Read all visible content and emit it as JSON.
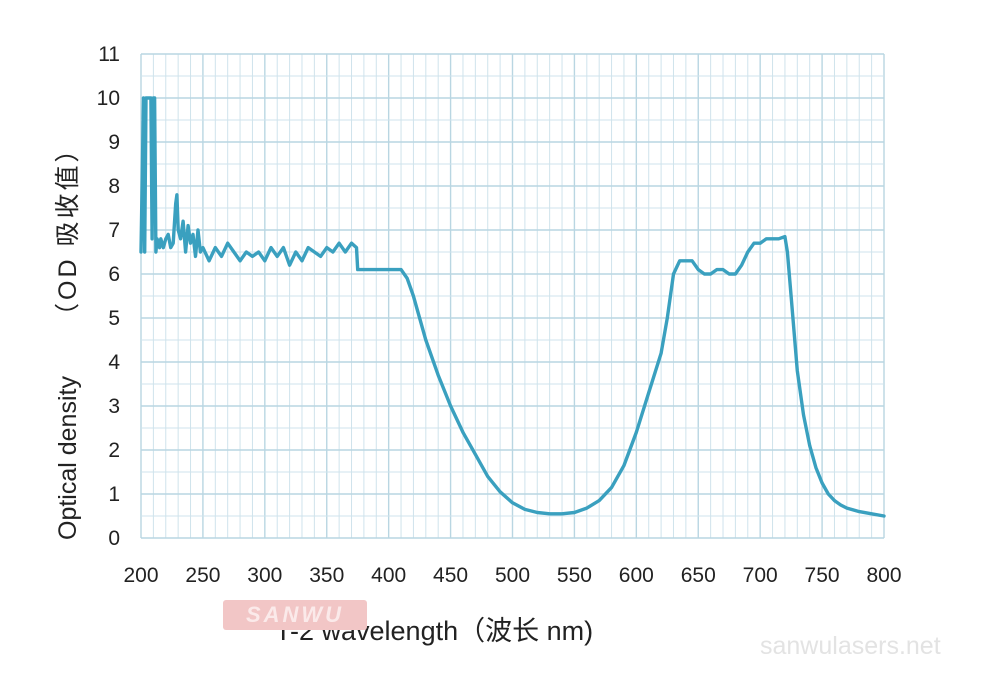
{
  "chart_data": {
    "type": "line",
    "title": "",
    "xlabel": "T-2 wavelength（波长 nm)",
    "ylabel_main": "Optical density",
    "ylabel_sub": "（OD 吸收值）",
    "xlim": [
      200,
      800
    ],
    "ylim": [
      0,
      11
    ],
    "xticks": [
      200,
      250,
      300,
      350,
      400,
      450,
      500,
      550,
      600,
      650,
      700,
      750,
      800
    ],
    "yticks": [
      0,
      1,
      2,
      3,
      4,
      5,
      6,
      7,
      8,
      9,
      10,
      11
    ],
    "grid": true,
    "color": "#3aa0bf",
    "series": [
      {
        "name": "",
        "x": [
          200,
          202,
          203,
          204,
          205,
          206,
          207,
          208,
          209,
          210,
          211,
          212,
          213,
          214,
          215,
          216,
          218,
          220,
          222,
          224,
          226,
          228,
          229,
          230,
          232,
          234,
          236,
          238,
          240,
          242,
          244,
          246,
          248,
          250,
          255,
          260,
          265,
          270,
          275,
          280,
          285,
          290,
          295,
          300,
          305,
          310,
          315,
          320,
          325,
          330,
          335,
          340,
          345,
          350,
          355,
          360,
          365,
          370,
          374,
          375,
          380,
          390,
          400,
          405,
          410,
          415,
          420,
          425,
          430,
          440,
          450,
          460,
          470,
          480,
          490,
          500,
          510,
          520,
          530,
          540,
          550,
          560,
          570,
          580,
          590,
          600,
          610,
          620,
          625,
          630,
          635,
          640,
          645,
          650,
          655,
          660,
          665,
          670,
          675,
          680,
          685,
          690,
          695,
          700,
          705,
          710,
          715,
          720,
          722,
          725,
          730,
          735,
          740,
          745,
          750,
          755,
          760,
          765,
          770,
          780,
          790,
          800
        ],
        "y": [
          6.5,
          10.0,
          6.5,
          10.0,
          10.0,
          10.0,
          10.0,
          10.0,
          6.8,
          10.0,
          10.0,
          6.5,
          6.8,
          6.7,
          6.6,
          6.8,
          6.6,
          6.8,
          6.9,
          6.6,
          6.7,
          7.6,
          7.8,
          7.0,
          6.8,
          7.2,
          6.5,
          7.1,
          6.7,
          6.9,
          6.4,
          7.0,
          6.5,
          6.6,
          6.3,
          6.6,
          6.4,
          6.7,
          6.5,
          6.3,
          6.5,
          6.4,
          6.5,
          6.3,
          6.6,
          6.4,
          6.6,
          6.2,
          6.5,
          6.3,
          6.6,
          6.5,
          6.4,
          6.6,
          6.5,
          6.7,
          6.5,
          6.7,
          6.6,
          6.1,
          6.1,
          6.1,
          6.1,
          6.1,
          6.1,
          5.9,
          5.5,
          5.0,
          4.5,
          3.7,
          3.0,
          2.4,
          1.9,
          1.4,
          1.05,
          0.8,
          0.65,
          0.58,
          0.55,
          0.55,
          0.58,
          0.68,
          0.85,
          1.15,
          1.65,
          2.4,
          3.3,
          4.2,
          5.0,
          6.0,
          6.3,
          6.3,
          6.3,
          6.1,
          6.0,
          6.0,
          6.1,
          6.1,
          6.0,
          6.0,
          6.2,
          6.5,
          6.7,
          6.7,
          6.8,
          6.8,
          6.8,
          6.85,
          6.5,
          5.5,
          3.8,
          2.8,
          2.1,
          1.6,
          1.25,
          1.0,
          0.85,
          0.75,
          0.68,
          0.6,
          0.55,
          0.5
        ]
      }
    ]
  },
  "watermark": {
    "logo_text": "SANWU",
    "site": "sanwulasers.net"
  }
}
